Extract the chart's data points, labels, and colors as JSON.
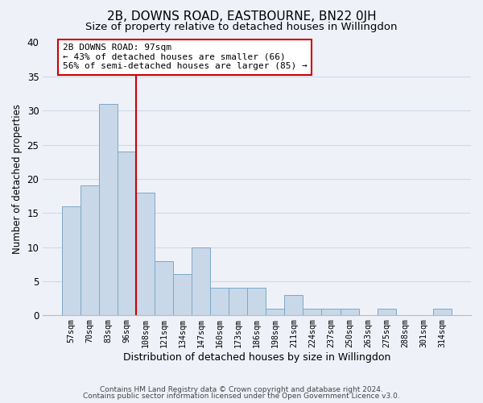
{
  "title": "2B, DOWNS ROAD, EASTBOURNE, BN22 0JH",
  "subtitle": "Size of property relative to detached houses in Willingdon",
  "xlabel": "Distribution of detached houses by size in Willingdon",
  "ylabel": "Number of detached properties",
  "bin_labels": [
    "57sqm",
    "70sqm",
    "83sqm",
    "96sqm",
    "108sqm",
    "121sqm",
    "134sqm",
    "147sqm",
    "160sqm",
    "173sqm",
    "186sqm",
    "198sqm",
    "211sqm",
    "224sqm",
    "237sqm",
    "250sqm",
    "263sqm",
    "275sqm",
    "288sqm",
    "301sqm",
    "314sqm"
  ],
  "bar_heights": [
    16,
    19,
    31,
    24,
    18,
    8,
    6,
    10,
    4,
    4,
    4,
    1,
    3,
    1,
    1,
    1,
    0,
    1,
    0,
    0,
    1
  ],
  "bar_color": "#c8d8e8",
  "bar_edge_color": "#7ca8c8",
  "annotation_line1": "2B DOWNS ROAD: 97sqm",
  "annotation_line2": "← 43% of detached houses are smaller (66)",
  "annotation_line3": "56% of semi-detached houses are larger (85) →",
  "annotation_box_color": "#cc0000",
  "annotation_text_color": "#000000",
  "ylim": [
    0,
    40
  ],
  "yticks": [
    0,
    5,
    10,
    15,
    20,
    25,
    30,
    35,
    40
  ],
  "grid_color": "#d0d8e8",
  "background_color": "#eef2f8",
  "footer_line1": "Contains HM Land Registry data © Crown copyright and database right 2024.",
  "footer_line2": "Contains public sector information licensed under the Open Government Licence v3.0.",
  "vline_x": 3.5,
  "title_fontsize": 11,
  "subtitle_fontsize": 9.5,
  "xlabel_fontsize": 9,
  "ylabel_fontsize": 8.5
}
